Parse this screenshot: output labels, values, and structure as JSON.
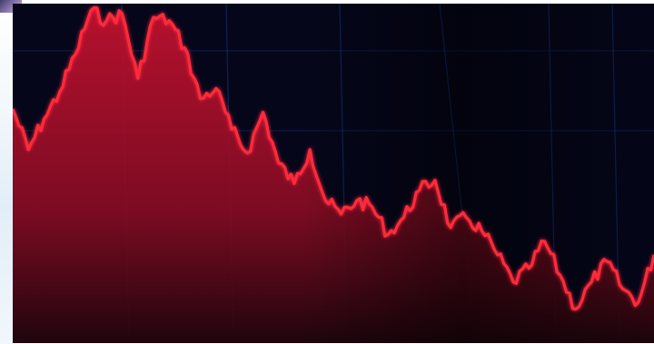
{
  "image": {
    "kind": "stock-photo",
    "colors": {
      "background": "#05061a",
      "grid": "#1a3a8a",
      "line": "#ff2a3a",
      "area_top": "#c0112f",
      "area_bottom": "#20050c"
    },
    "series_shape": [
      0.69,
      0.57,
      0.66,
      0.74,
      0.85,
      0.98,
      0.95,
      0.97,
      0.78,
      0.96,
      0.95,
      0.87,
      0.72,
      0.75,
      0.63,
      0.56,
      0.68,
      0.53,
      0.47,
      0.57,
      0.42,
      0.38,
      0.42,
      0.4,
      0.32,
      0.37,
      0.45,
      0.48,
      0.34,
      0.37,
      0.33,
      0.26,
      0.18,
      0.22,
      0.3,
      0.2,
      0.1,
      0.18,
      0.24,
      0.16,
      0.12,
      0.26
    ]
  }
}
